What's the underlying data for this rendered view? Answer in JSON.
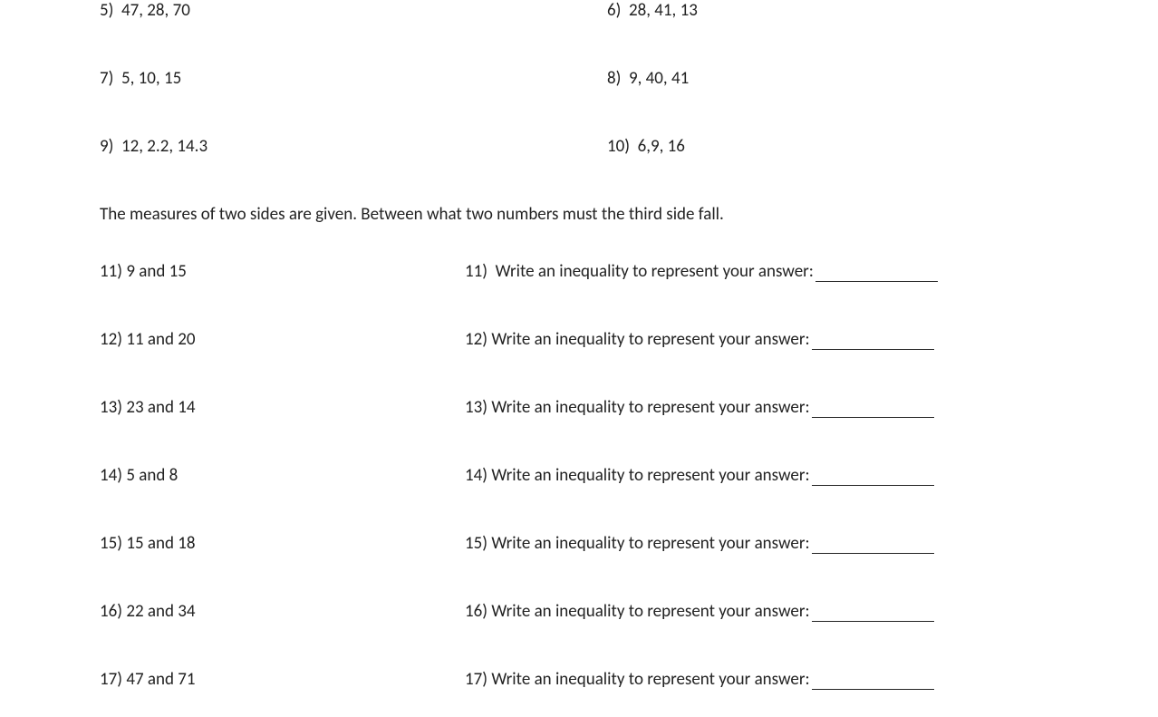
{
  "topProblems": {
    "left": [
      {
        "num": "5)",
        "text": "47, 28, 70"
      },
      {
        "num": "7)",
        "text": "5, 10, 15"
      },
      {
        "num": "9)",
        "text": "12, 2.2, 14.3"
      }
    ],
    "right": [
      {
        "num": "6)",
        "text": "28, 41, 13"
      },
      {
        "num": "8)",
        "text": "9, 40, 41"
      },
      {
        "num": "10)",
        "text": "6,9, 16"
      }
    ]
  },
  "instruction": "The measures of two sides are given.  Between what two numbers must the third side fall.",
  "bottom": {
    "left": [
      {
        "num": "11)",
        "text": "9 and 15"
      },
      {
        "num": "12)",
        "text": "11 and 20"
      },
      {
        "num": "13)",
        "text": "23 and 14"
      },
      {
        "num": "14)",
        "text": "5 and 8"
      },
      {
        "num": "15)",
        "text": "15 and 18"
      },
      {
        "num": "16)",
        "text": "22 and 34"
      },
      {
        "num": "17)",
        "text": "47 and 71"
      }
    ],
    "right": [
      {
        "num": "11)",
        "text": "Write an inequality to represent your answer:"
      },
      {
        "num": "12)",
        "text": "Write an inequality to represent your answer:"
      },
      {
        "num": "13)",
        "text": "Write an inequality to represent your answer:"
      },
      {
        "num": "14)",
        "text": "Write an inequality to represent your answer:"
      },
      {
        "num": "15)",
        "text": "Write an inequality to represent your answer:"
      },
      {
        "num": "16)",
        "text": "Write an inequality to represent your answer:"
      },
      {
        "num": "17)",
        "text": "Write an inequality to represent your answer:"
      }
    ]
  }
}
